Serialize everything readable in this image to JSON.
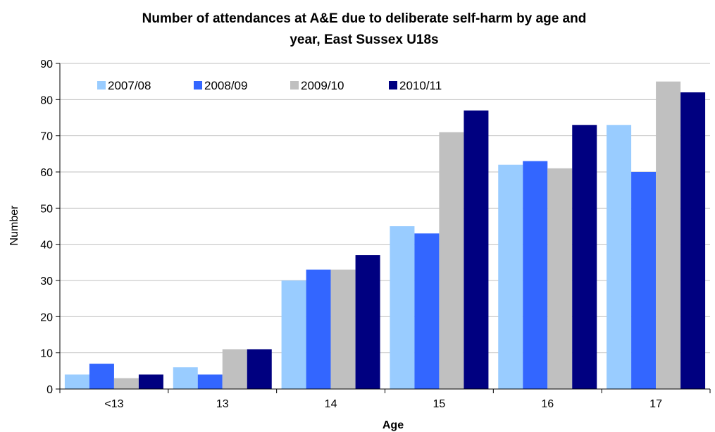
{
  "chart_data": {
    "type": "bar",
    "title_lines": [
      "Number of attendances at A&E due to deliberate self-harm by age and",
      "year, East Sussex U18s"
    ],
    "xlabel": "Age",
    "ylabel": "Number",
    "ylim": [
      0,
      90
    ],
    "yticks": [
      0,
      10,
      20,
      30,
      40,
      50,
      60,
      70,
      80,
      90
    ],
    "categories": [
      "<13",
      "13",
      "14",
      "15",
      "16",
      "17"
    ],
    "series": [
      {
        "name": "2007/08",
        "color": "#99CCFF",
        "values": [
          4,
          6,
          30,
          45,
          62,
          73
        ]
      },
      {
        "name": "2008/09",
        "color": "#3366FF",
        "values": [
          7,
          4,
          33,
          43,
          63,
          60
        ]
      },
      {
        "name": "2009/10",
        "color": "#C0C0C0",
        "values": [
          3,
          11,
          33,
          71,
          61,
          85
        ]
      },
      {
        "name": "2010/11",
        "color": "#000080",
        "values": [
          4,
          11,
          37,
          77,
          73,
          82
        ]
      }
    ],
    "grid": true,
    "legend_position": "top-left"
  }
}
